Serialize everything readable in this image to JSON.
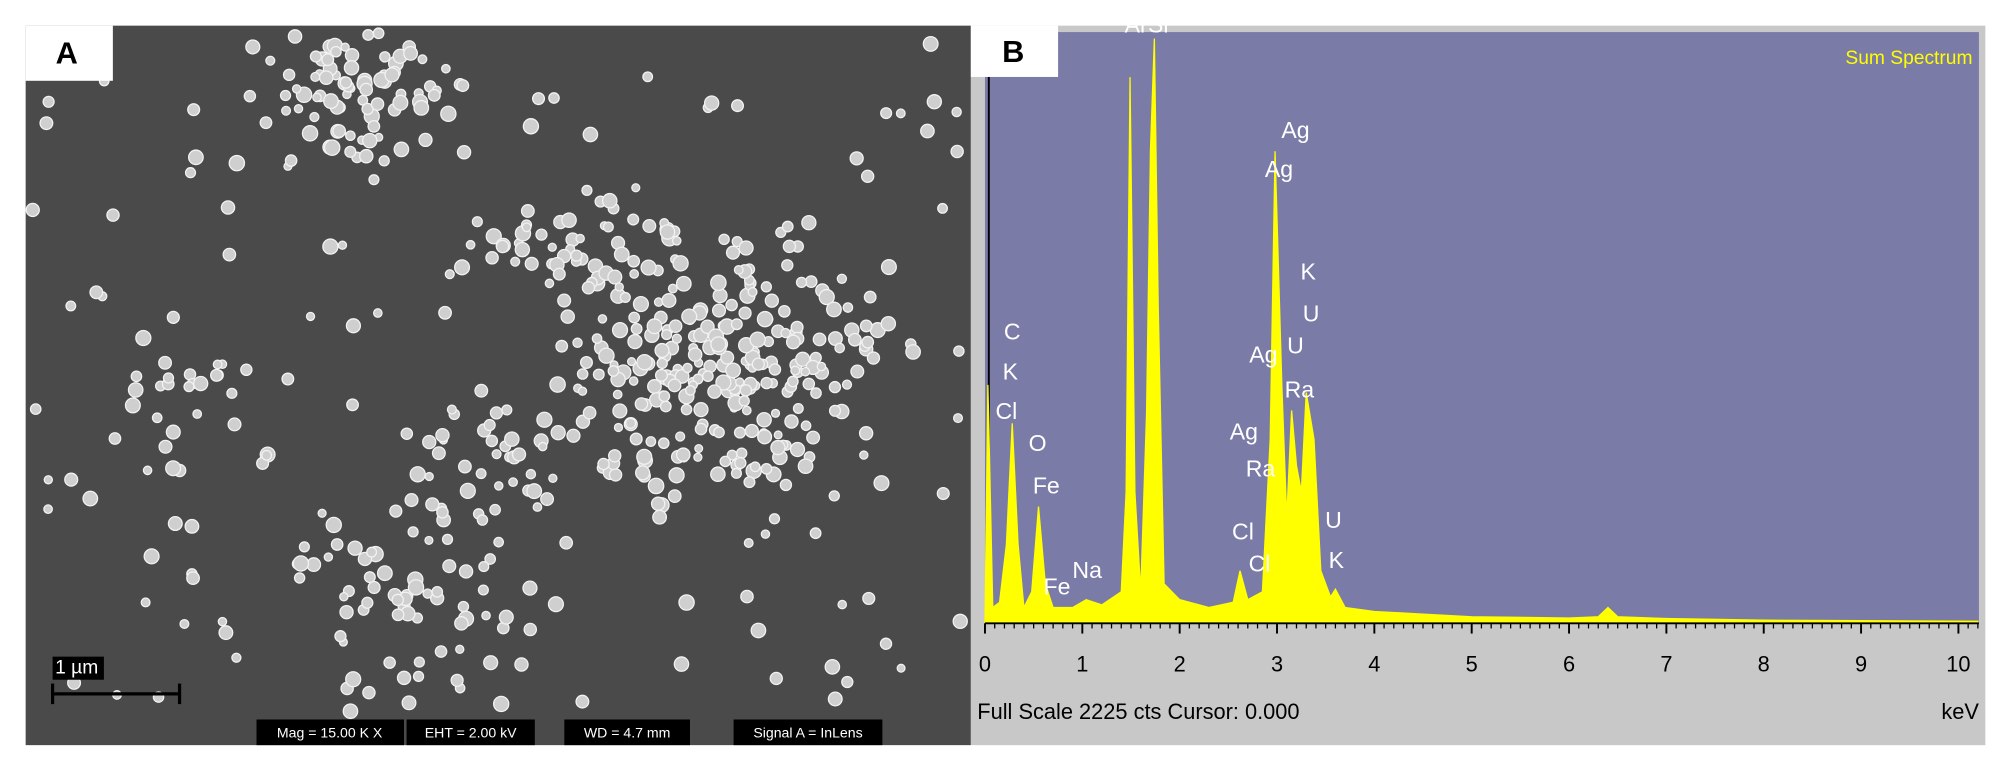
{
  "panel_a": {
    "panel_label": "A",
    "scale_bar": "1 µm",
    "info": [
      "Mag = 15.00 K X",
      "EHT = 2.00 kV",
      "WD = 4.7 mm",
      "Signal A = InLens"
    ]
  },
  "chart_data": {
    "type": "area",
    "panel_label": "B",
    "title": "Sum Spectrum",
    "footer": "Full Scale 2225 cts Cursor: 0.000",
    "xlabel": "keV",
    "x": [
      0,
      0.03,
      0.08,
      0.15,
      0.22,
      0.28,
      0.34,
      0.4,
      0.48,
      0.55,
      0.62,
      0.7,
      0.9,
      1.04,
      1.2,
      1.4,
      1.45,
      1.49,
      1.54,
      1.6,
      1.66,
      1.7,
      1.74,
      1.78,
      1.84,
      2.0,
      2.3,
      2.55,
      2.62,
      2.7,
      2.85,
      2.93,
      2.98,
      3.05,
      3.1,
      3.15,
      3.2,
      3.25,
      3.3,
      3.38,
      3.45,
      3.55,
      3.6,
      3.7,
      4.0,
      4.5,
      5,
      6,
      6.3,
      6.4,
      6.5,
      7,
      8,
      9,
      10.2
    ],
    "series": [
      {
        "name": "Sum Spectrum",
        "color": "#ffff00",
        "values": [
          0,
          907,
          60,
          80,
          300,
          761,
          300,
          60,
          120,
          444,
          150,
          60,
          60,
          90,
          70,
          120,
          500,
          2078,
          500,
          120,
          800,
          1800,
          2225,
          1200,
          150,
          90,
          60,
          80,
          200,
          90,
          120,
          700,
          1796,
          900,
          400,
          810,
          600,
          500,
          878,
          700,
          200,
          100,
          130,
          60,
          45,
          35,
          25,
          20,
          25,
          60,
          25,
          18,
          12,
          10,
          8
        ]
      }
    ],
    "xlim": [
      0,
      10.2
    ],
    "ylim": [
      0,
      2225
    ],
    "xticks": [
      0,
      1,
      2,
      3,
      4,
      5,
      6,
      7,
      8,
      9,
      10
    ],
    "annotations": [
      {
        "text": "Al",
        "x": 1.54,
        "y": 2270
      },
      {
        "text": "Si",
        "x": 1.78,
        "y": 2270
      },
      {
        "text": "Ag",
        "x": 3.19,
        "y": 1869
      },
      {
        "text": "Ag",
        "x": 3.02,
        "y": 1722
      },
      {
        "text": "K",
        "x": 3.32,
        "y": 1332
      },
      {
        "text": "U",
        "x": 3.35,
        "y": 1171
      },
      {
        "text": "Ag",
        "x": 2.86,
        "y": 1015
      },
      {
        "text": "U",
        "x": 3.19,
        "y": 1049
      },
      {
        "text": "Ra",
        "x": 3.23,
        "y": 883
      },
      {
        "text": "C",
        "x": 0.28,
        "y": 1103
      },
      {
        "text": "K",
        "x": 0.26,
        "y": 951
      },
      {
        "text": "Cl",
        "x": 0.22,
        "y": 800
      },
      {
        "text": "O",
        "x": 0.54,
        "y": 678
      },
      {
        "text": "Fe",
        "x": 0.63,
        "y": 517
      },
      {
        "text": "Ag",
        "x": 2.66,
        "y": 722
      },
      {
        "text": "Ra",
        "x": 2.83,
        "y": 581
      },
      {
        "text": "Cl",
        "x": 2.65,
        "y": 342
      },
      {
        "text": "Cl",
        "x": 2.82,
        "y": 220
      },
      {
        "text": "U",
        "x": 3.58,
        "y": 385
      },
      {
        "text": "K",
        "x": 3.61,
        "y": 234
      },
      {
        "text": "Fe",
        "x": 0.74,
        "y": 132
      },
      {
        "text": "Na",
        "x": 1.05,
        "y": 195
      }
    ]
  }
}
